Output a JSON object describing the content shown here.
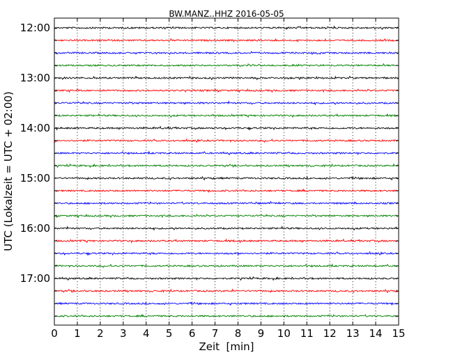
{
  "chart_data": {
    "type": "line",
    "title": "BW.MANZ..HHZ 2016-05-05",
    "xlabel": "Zeit  [min]",
    "ylabel": "UTC (Lokalzeit = UTC + 02:00)",
    "xlim": [
      0,
      15
    ],
    "x_ticks": [
      0,
      1,
      2,
      3,
      4,
      5,
      6,
      7,
      8,
      9,
      10,
      11,
      12,
      13,
      14,
      15
    ],
    "y_tick_labels": [
      "12:00",
      "13:00",
      "14:00",
      "15:00",
      "16:00",
      "17:00"
    ],
    "grid": "vertical dotted",
    "trace_colors": [
      "#000000",
      "#ff0000",
      "#0000ff",
      "#008000"
    ],
    "traces": [
      {
        "start": "12:00",
        "color": "#000000"
      },
      {
        "start": "12:15",
        "color": "#ff0000"
      },
      {
        "start": "12:30",
        "color": "#0000ff"
      },
      {
        "start": "12:45",
        "color": "#008000"
      },
      {
        "start": "13:00",
        "color": "#000000"
      },
      {
        "start": "13:15",
        "color": "#ff0000"
      },
      {
        "start": "13:30",
        "color": "#0000ff"
      },
      {
        "start": "13:45",
        "color": "#008000"
      },
      {
        "start": "14:00",
        "color": "#000000"
      },
      {
        "start": "14:15",
        "color": "#ff0000"
      },
      {
        "start": "14:30",
        "color": "#0000ff"
      },
      {
        "start": "14:45",
        "color": "#008000"
      },
      {
        "start": "15:00",
        "color": "#000000"
      },
      {
        "start": "15:15",
        "color": "#ff0000"
      },
      {
        "start": "15:30",
        "color": "#0000ff"
      },
      {
        "start": "15:45",
        "color": "#008000"
      },
      {
        "start": "16:00",
        "color": "#000000"
      },
      {
        "start": "16:15",
        "color": "#ff0000"
      },
      {
        "start": "16:30",
        "color": "#0000ff"
      },
      {
        "start": "16:45",
        "color": "#008000"
      },
      {
        "start": "17:00",
        "color": "#000000"
      },
      {
        "start": "17:15",
        "color": "#ff0000"
      },
      {
        "start": "17:30",
        "color": "#0000ff"
      },
      {
        "start": "17:45",
        "color": "#008000"
      }
    ]
  }
}
